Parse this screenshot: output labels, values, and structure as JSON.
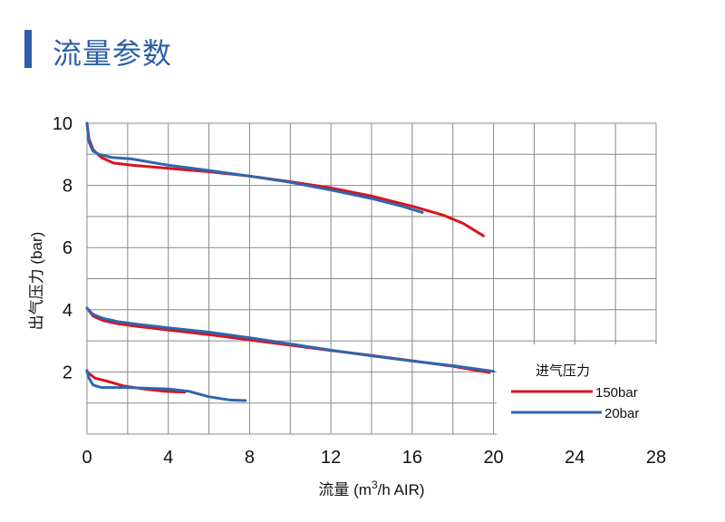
{
  "page": {
    "title": "流量参数",
    "accent_color": "#2c5fa8"
  },
  "chart_data": {
    "type": "line",
    "title": "",
    "xlabel": "流量 (m3/h AIR)",
    "xlabel_parts": {
      "prefix": "流量 (m",
      "sup": "3",
      "suffix": "/h AIR)"
    },
    "ylabel": "出气压力 (bar)",
    "xlim": [
      0,
      28
    ],
    "ylim": [
      0,
      10
    ],
    "x_ticks": [
      0,
      4,
      8,
      12,
      16,
      20,
      24,
      28
    ],
    "y_ticks": [
      2,
      4,
      6,
      8,
      10
    ],
    "grid": true,
    "legend": {
      "title": "进气压力",
      "placement": "bottom-right",
      "entries": [
        {
          "label": "150bar",
          "color": "#d8141f"
        },
        {
          "label": "20bar",
          "color": "#2e66ae"
        }
      ]
    },
    "series": [
      {
        "name": "150bar",
        "color": "#d8141f",
        "points": [
          [
            0,
            10
          ],
          [
            0.1,
            9.5
          ],
          [
            0.3,
            9.15
          ],
          [
            0.7,
            8.9
          ],
          [
            1.3,
            8.72
          ],
          [
            2.2,
            8.65
          ],
          [
            4,
            8.55
          ],
          [
            6,
            8.44
          ],
          [
            8,
            8.3
          ],
          [
            10,
            8.12
          ],
          [
            12,
            7.92
          ],
          [
            14,
            7.66
          ],
          [
            16,
            7.33
          ],
          [
            17.5,
            7.05
          ],
          [
            18.5,
            6.78
          ],
          [
            19.5,
            6.38
          ]
        ]
      },
      {
        "name": "20bar",
        "color": "#2e66ae",
        "points": [
          [
            0,
            10
          ],
          [
            0.1,
            9.4
          ],
          [
            0.3,
            9.1
          ],
          [
            0.6,
            9.0
          ],
          [
            1.2,
            8.9
          ],
          [
            2.2,
            8.85
          ],
          [
            4,
            8.65
          ],
          [
            6,
            8.48
          ],
          [
            8,
            8.3
          ],
          [
            10,
            8.1
          ],
          [
            12,
            7.85
          ],
          [
            14,
            7.58
          ],
          [
            15.5,
            7.33
          ],
          [
            16.5,
            7.13
          ]
        ]
      },
      {
        "name": "150bar",
        "color": "#d8141f",
        "points": [
          [
            0,
            4.05
          ],
          [
            0.3,
            3.8
          ],
          [
            0.8,
            3.65
          ],
          [
            1.5,
            3.55
          ],
          [
            2.5,
            3.46
          ],
          [
            4,
            3.35
          ],
          [
            6,
            3.2
          ],
          [
            8,
            3.03
          ],
          [
            10,
            2.86
          ],
          [
            12,
            2.69
          ],
          [
            14,
            2.53
          ],
          [
            16,
            2.36
          ],
          [
            18,
            2.18
          ],
          [
            19.8,
            1.98
          ]
        ]
      },
      {
        "name": "20bar",
        "color": "#2e66ae",
        "points": [
          [
            0,
            4.05
          ],
          [
            0.3,
            3.85
          ],
          [
            0.8,
            3.72
          ],
          [
            1.5,
            3.62
          ],
          [
            2.5,
            3.53
          ],
          [
            4,
            3.42
          ],
          [
            6,
            3.28
          ],
          [
            8,
            3.1
          ],
          [
            10,
            2.9
          ],
          [
            12,
            2.7
          ],
          [
            14,
            2.52
          ],
          [
            16,
            2.35
          ],
          [
            18,
            2.2
          ],
          [
            20,
            2.02
          ]
        ]
      },
      {
        "name": "150bar",
        "color": "#d8141f",
        "points": [
          [
            0,
            2.0
          ],
          [
            0.4,
            1.8
          ],
          [
            1,
            1.7
          ],
          [
            1.8,
            1.55
          ],
          [
            2.8,
            1.45
          ],
          [
            3.8,
            1.38
          ],
          [
            4.8,
            1.35
          ]
        ]
      },
      {
        "name": "20bar",
        "color": "#2e66ae",
        "points": [
          [
            0,
            2.05
          ],
          [
            0.1,
            1.8
          ],
          [
            0.3,
            1.58
          ],
          [
            0.7,
            1.5
          ],
          [
            2,
            1.5
          ],
          [
            4,
            1.45
          ],
          [
            5,
            1.38
          ],
          [
            6,
            1.2
          ],
          [
            7,
            1.1
          ],
          [
            7.8,
            1.08
          ]
        ]
      }
    ]
  }
}
